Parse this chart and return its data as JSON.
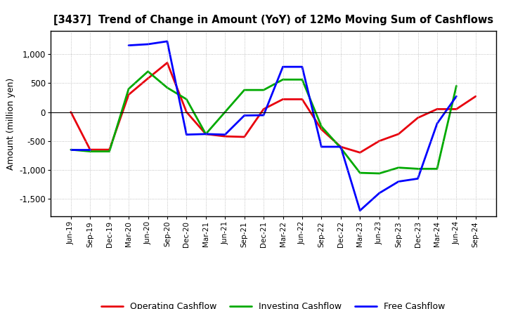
{
  "title": "[3437]  Trend of Change in Amount (YoY) of 12Mo Moving Sum of Cashflows",
  "ylabel": "Amount (million yen)",
  "labels": [
    "Jun-19",
    "Sep-19",
    "Dec-19",
    "Mar-20",
    "Jun-20",
    "Sep-20",
    "Dec-20",
    "Mar-21",
    "Jun-21",
    "Sep-21",
    "Dec-21",
    "Mar-22",
    "Jun-22",
    "Sep-22",
    "Dec-22",
    "Mar-23",
    "Jun-23",
    "Sep-23",
    "Dec-23",
    "Mar-24",
    "Jun-24",
    "Sep-24"
  ],
  "operating": [
    0,
    -650,
    -650,
    300,
    580,
    850,
    0,
    -380,
    -420,
    -430,
    50,
    220,
    220,
    -300,
    -600,
    -700,
    -500,
    -380,
    -100,
    50,
    50,
    270
  ],
  "investing": [
    -650,
    -680,
    -680,
    400,
    700,
    420,
    220,
    -380,
    0,
    380,
    380,
    560,
    560,
    -250,
    -620,
    -1050,
    -1060,
    -960,
    -980,
    -980,
    450,
    null
  ],
  "free": [
    -650,
    -650,
    null,
    1150,
    1170,
    1220,
    -390,
    -380,
    -390,
    -60,
    -55,
    780,
    780,
    -600,
    -600,
    -1700,
    -1400,
    -1200,
    -1150,
    -200,
    270,
    null
  ],
  "operating_color": "#e8000d",
  "investing_color": "#00aa00",
  "free_color": "#0000ff",
  "ylim": [
    -1800,
    1400
  ],
  "yticks": [
    -1500,
    -1000,
    -500,
    0,
    500,
    1000
  ],
  "background_color": "#ffffff",
  "grid_color": "#b0b0b0"
}
